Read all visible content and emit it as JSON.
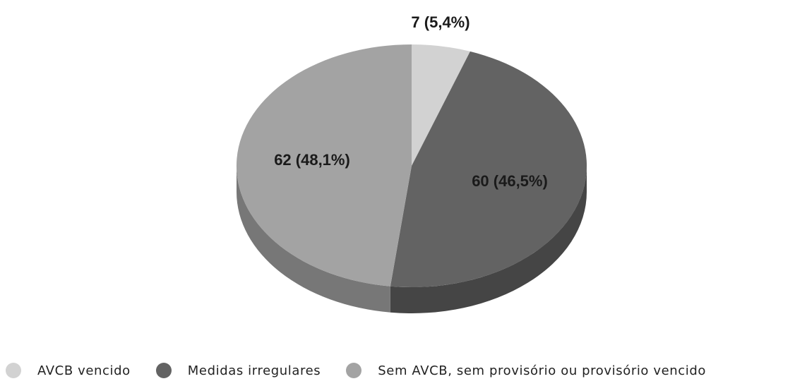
{
  "chart_data": {
    "type": "pie",
    "style": "3d",
    "slices": [
      {
        "name": "AVCB vencido",
        "value": 7,
        "percent": 5.4,
        "label": "7 (5,4%)",
        "color": "#d2d2d2",
        "side_color": "#a8a8a8"
      },
      {
        "name": "Medidas irregulares",
        "value": 60,
        "percent": 46.5,
        "label": "60 (46,5%)",
        "color": "#636363",
        "side_color": "#454545"
      },
      {
        "name": "Sem AVCB, sem provisório ou provisório vencido",
        "value": 62,
        "percent": 48.1,
        "label": "62 (48,1%)",
        "color": "#a3a3a3",
        "side_color": "#777777"
      }
    ],
    "legend": {
      "placement": "bottom-left"
    }
  }
}
